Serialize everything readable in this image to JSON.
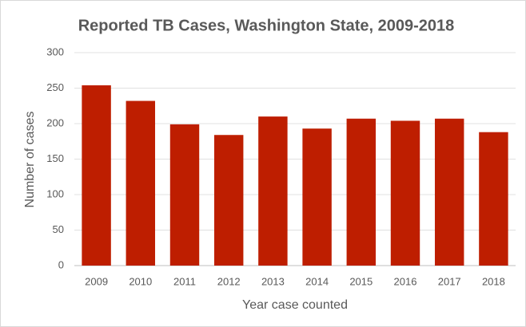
{
  "chart_data": {
    "type": "bar",
    "title": "Reported TB Cases, Washington State, 2009-2018",
    "x_label": "Year case counted",
    "y_label": "Number of cases",
    "categories": [
      "2009",
      "2010",
      "2011",
      "2012",
      "2013",
      "2014",
      "2015",
      "2016",
      "2017",
      "2018"
    ],
    "values": [
      254,
      232,
      199,
      184,
      210,
      193,
      207,
      204,
      207,
      188
    ],
    "color": "#be1e00",
    "ylim": [
      0,
      300
    ],
    "yticks": [
      0,
      50,
      100,
      150,
      200,
      250,
      300
    ],
    "grid": true
  }
}
